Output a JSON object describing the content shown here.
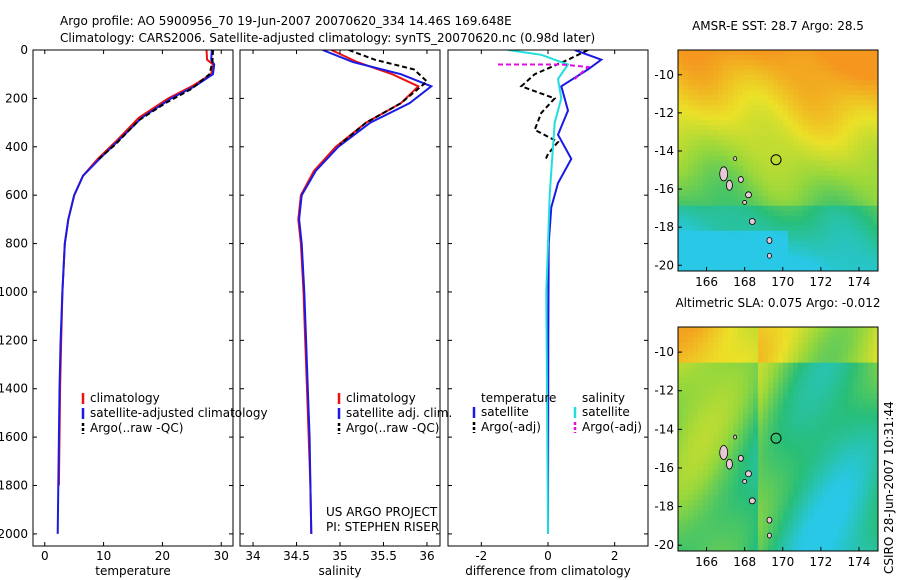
{
  "title_line1": "Argo profile: AO 5900956_70 19-Jun-2007 20070620_334 14.46S 169.648E",
  "title_line2": "Climatology: CARS2006. Satellite-adjusted climatology: synTS_20070620.nc (0.98d later)",
  "side_stamp": "CSIRO 28-Jun-2007 10:31:44",
  "colors": {
    "red": "#ee1111",
    "blue": "#1a1ae6",
    "black": "#000000",
    "cyan": "#22dddd",
    "magenta": "#e010e0"
  },
  "chart_data": [
    {
      "type": "line",
      "name": "temperature",
      "xlabel": "temperature",
      "ylabel": "",
      "xlim": [
        -2,
        32
      ],
      "ylim": [
        2050,
        0
      ],
      "xticks": [
        "0",
        "10",
        "20",
        "30"
      ],
      "xtick_values": [
        0,
        10,
        20,
        30
      ],
      "yticks": [
        "0",
        "200",
        "400",
        "600",
        "800",
        "1000",
        "1200",
        "1400",
        "1600",
        "1800",
        "2000"
      ],
      "ytick_values": [
        0,
        200,
        400,
        600,
        800,
        1000,
        1200,
        1400,
        1600,
        1800,
        2000
      ],
      "legend": [
        "climatology",
        "satellite-adjusted climatology",
        "Argo(..raw -QC)"
      ],
      "series": [
        {
          "name": "climatology",
          "color": "red",
          "dash": "",
          "points": [
            [
              27.5,
              0
            ],
            [
              27.6,
              40
            ],
            [
              28.6,
              60
            ],
            [
              28.3,
              100
            ],
            [
              25,
              150
            ],
            [
              21,
              200
            ],
            [
              16,
              280
            ],
            [
              12,
              380
            ],
            [
              9,
              450
            ],
            [
              6.5,
              520
            ],
            [
              5,
              600
            ],
            [
              4,
              700
            ],
            [
              3.4,
              800
            ],
            [
              3,
              1000
            ],
            [
              2.8,
              1200
            ],
            [
              2.6,
              1400
            ],
            [
              2.5,
              1600
            ],
            [
              2.4,
              1800
            ]
          ]
        },
        {
          "name": "satellite-adjusted climatology",
          "color": "blue",
          "dash": "",
          "points": [
            [
              28.4,
              0
            ],
            [
              28.3,
              40
            ],
            [
              28.8,
              60
            ],
            [
              28.6,
              100
            ],
            [
              25.5,
              150
            ],
            [
              21.5,
              200
            ],
            [
              16.5,
              280
            ],
            [
              12.3,
              380
            ],
            [
              9.3,
              450
            ],
            [
              6.5,
              520
            ],
            [
              5,
              600
            ],
            [
              4,
              700
            ],
            [
              3.4,
              800
            ],
            [
              3,
              1000
            ],
            [
              2.7,
              1200
            ],
            [
              2.5,
              1400
            ],
            [
              2.4,
              1600
            ],
            [
              2.3,
              1800
            ],
            [
              2.2,
              2000
            ]
          ]
        },
        {
          "name": "Argo(..raw -QC)",
          "color": "black",
          "dash": "5,3",
          "points": [
            [
              28.6,
              0
            ],
            [
              28.5,
              50
            ],
            [
              28,
              100
            ],
            [
              25,
              160
            ],
            [
              20.5,
              220
            ],
            [
              16,
              290
            ],
            [
              12,
              390
            ],
            [
              9.2,
              450
            ]
          ]
        }
      ]
    },
    {
      "type": "line",
      "name": "salinity",
      "xlabel": "salinity",
      "ylabel": "",
      "xlim": [
        33.85,
        36.15
      ],
      "ylim": [
        2050,
        0
      ],
      "xticks": [
        "34",
        "34.5",
        "35",
        "35.5",
        "36"
      ],
      "xtick_values": [
        34,
        34.5,
        35,
        35.5,
        36
      ],
      "legend": [
        "climatology",
        "satellite adj. clim.",
        "Argo(..raw -QC)"
      ],
      "series": [
        {
          "name": "climatology",
          "color": "red",
          "dash": "",
          "points": [
            [
              34.9,
              0
            ],
            [
              35.2,
              50
            ],
            [
              35.6,
              100
            ],
            [
              35.9,
              150
            ],
            [
              35.7,
              220
            ],
            [
              35.3,
              300
            ],
            [
              34.95,
              400
            ],
            [
              34.7,
              500
            ],
            [
              34.55,
              600
            ],
            [
              34.52,
              700
            ],
            [
              34.55,
              800
            ],
            [
              34.58,
              1000
            ],
            [
              34.6,
              1200
            ],
            [
              34.62,
              1400
            ],
            [
              34.64,
              1600
            ],
            [
              34.66,
              1800
            ],
            [
              34.67,
              2000
            ]
          ]
        },
        {
          "name": "satellite adj. clim.",
          "color": "blue",
          "dash": "",
          "points": [
            [
              34.8,
              0
            ],
            [
              35.15,
              50
            ],
            [
              35.7,
              100
            ],
            [
              36.05,
              150
            ],
            [
              35.8,
              220
            ],
            [
              35.35,
              300
            ],
            [
              34.98,
              400
            ],
            [
              34.72,
              500
            ],
            [
              34.56,
              600
            ],
            [
              34.53,
              700
            ],
            [
              34.56,
              800
            ],
            [
              34.59,
              1000
            ],
            [
              34.61,
              1200
            ],
            [
              34.63,
              1400
            ],
            [
              34.65,
              1600
            ],
            [
              34.66,
              1800
            ],
            [
              34.67,
              2000
            ]
          ]
        },
        {
          "name": "Argo(..raw -QC)",
          "color": "black",
          "dash": "5,3",
          "points": [
            [
              35.1,
              0
            ],
            [
              35.4,
              40
            ],
            [
              35.85,
              80
            ],
            [
              36.0,
              130
            ],
            [
              35.7,
              220
            ],
            [
              35.3,
              300
            ],
            [
              35.0,
              390
            ]
          ]
        }
      ]
    },
    {
      "type": "line",
      "name": "difference",
      "xlabel": "difference from climatology",
      "ylabel": "",
      "xlim": [
        -3,
        3
      ],
      "ylim": [
        2050,
        0
      ],
      "xticks": [
        "-2",
        "0",
        "2"
      ],
      "xtick_values": [
        -2,
        0,
        2
      ],
      "legend_temperature": [
        "temperature",
        "satellite",
        "Argo(-adj)"
      ],
      "legend_salinity": [
        "salinity",
        "satellite",
        "Argo(-adj)"
      ],
      "series": [
        {
          "name": "temperature satellite",
          "color": "blue",
          "dash": "",
          "points": [
            [
              0.8,
              0
            ],
            [
              1.6,
              40
            ],
            [
              1.2,
              80
            ],
            [
              0.4,
              150
            ],
            [
              0.6,
              250
            ],
            [
              0.3,
              350
            ],
            [
              0.7,
              450
            ],
            [
              0.3,
              550
            ],
            [
              0.1,
              650
            ],
            [
              0.02,
              800
            ],
            [
              0.01,
              1200
            ],
            [
              0,
              2000
            ]
          ]
        },
        {
          "name": "temperature Argo(-adj)",
          "color": "black",
          "dash": "5,3",
          "points": [
            [
              1.2,
              0
            ],
            [
              0.6,
              40
            ],
            [
              -0.4,
              100
            ],
            [
              -0.8,
              150
            ],
            [
              0.2,
              200
            ],
            [
              -0.2,
              260
            ],
            [
              -0.4,
              330
            ],
            [
              0.3,
              380
            ],
            [
              0,
              430
            ],
            [
              -0.1,
              460
            ]
          ]
        },
        {
          "name": "salinity satellite",
          "color": "cyan",
          "dash": "",
          "points": [
            [
              -1.2,
              0
            ],
            [
              -0.2,
              20
            ],
            [
              0.6,
              60
            ],
            [
              0.3,
              120
            ],
            [
              0.4,
              200
            ],
            [
              0.2,
              300
            ],
            [
              0.15,
              400
            ],
            [
              0.1,
              500
            ],
            [
              0.05,
              600
            ],
            [
              0,
              800
            ],
            [
              -0.05,
              1000
            ],
            [
              0,
              2000
            ]
          ]
        },
        {
          "name": "salinity Argo(-adj)",
          "color": "magenta",
          "dash": "5,3",
          "points": [
            [
              -1.5,
              60
            ],
            [
              0.4,
              60
            ],
            [
              1.2,
              70
            ],
            [
              0.8,
              120
            ]
          ]
        }
      ]
    },
    {
      "type": "heatmap",
      "name": "sst_map",
      "title": "AMSR-E SST: 28.7 Argo: 28.5",
      "xlim": [
        164.5,
        175
      ],
      "ylim": [
        -20.3,
        -8.7
      ],
      "xticks": [
        "166",
        "168",
        "170",
        "172",
        "174"
      ],
      "xtick_values": [
        166,
        168,
        170,
        172,
        174
      ],
      "yticks": [
        "-10",
        "-12",
        "-14",
        "-16",
        "-18",
        "-20"
      ],
      "ytick_values": [
        -10,
        -12,
        -14,
        -16,
        -18,
        -20
      ],
      "marker": [
        169.648,
        -14.46
      ]
    },
    {
      "type": "heatmap",
      "name": "sla_map",
      "title": "Altimetric SLA: 0.075 Argo: -0.012",
      "xlim": [
        164.5,
        175
      ],
      "ylim": [
        -20.3,
        -8.7
      ],
      "xticks": [
        "166",
        "168",
        "170",
        "172",
        "174"
      ],
      "xtick_values": [
        166,
        168,
        170,
        172,
        174
      ],
      "yticks": [
        "-10",
        "-12",
        "-14",
        "-16",
        "-18",
        "-20"
      ],
      "ytick_values": [
        -10,
        -12,
        -14,
        -16,
        -18,
        -20
      ],
      "marker": [
        169.648,
        -14.46
      ]
    }
  ],
  "footer": {
    "line1": "US ARGO PROJECT",
    "line2": "PI: STEPHEN RISER"
  }
}
